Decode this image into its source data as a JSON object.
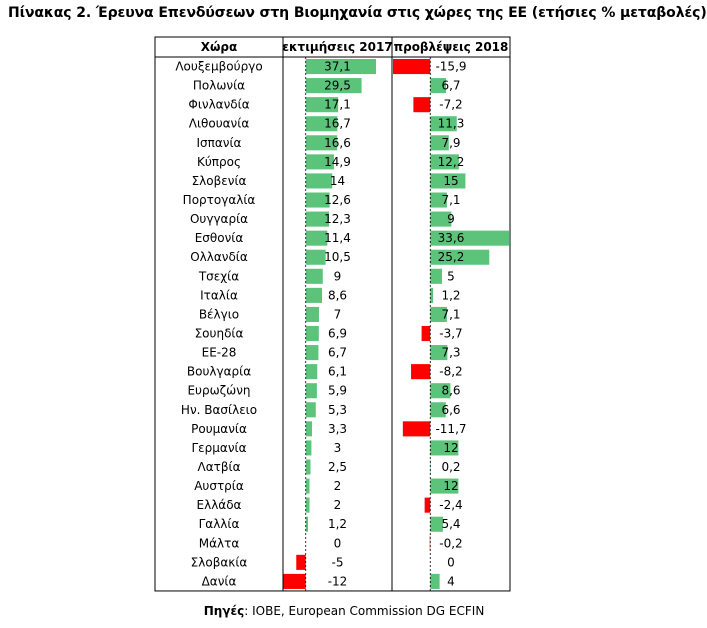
{
  "title": "Πίνακας 2. Έρευνα Επενδύσεων στη Βιομηχανία στις χώρες της ΕΕ (ετήσιες % μεταβολές)",
  "source_label": "Πηγές",
  "source_text": ": IOBE, European Commission DG ECFIN",
  "colors": {
    "positive": "#5cc47a",
    "negative": "#ff0000",
    "grid": "#000000"
  },
  "chart_data": {
    "type": "table",
    "columns": [
      "Χώρα",
      "εκτιμήσεις 2017",
      "προβλέψεις 2018"
    ],
    "rows": [
      {
        "country": "Λουξεμβούργο",
        "est2017": "37,1",
        "f2018": "-15,9"
      },
      {
        "country": "Πολωνία",
        "est2017": "29,5",
        "f2018": "6,7"
      },
      {
        "country": "Φινλανδία",
        "est2017": "17,1",
        "f2018": "-7,2"
      },
      {
        "country": "Λιθουανία",
        "est2017": "16,7",
        "f2018": "11,3"
      },
      {
        "country": "Ισπανία",
        "est2017": "16,6",
        "f2018": "7,9"
      },
      {
        "country": "Κύπρος",
        "est2017": "14,9",
        "f2018": "12,2"
      },
      {
        "country": "Σλοβενία",
        "est2017": "14",
        "f2018": "15"
      },
      {
        "country": "Πορτογαλία",
        "est2017": "12,6",
        "f2018": "7,1"
      },
      {
        "country": "Ουγγαρία",
        "est2017": "12,3",
        "f2018": "9"
      },
      {
        "country": "Εσθονία",
        "est2017": "11,4",
        "f2018": "33,6"
      },
      {
        "country": "Ολλανδία",
        "est2017": "10,5",
        "f2018": "25,2"
      },
      {
        "country": "Τσεχία",
        "est2017": "9",
        "f2018": "5"
      },
      {
        "country": "Ιταλία",
        "est2017": "8,6",
        "f2018": "1,2"
      },
      {
        "country": "Βέλγιο",
        "est2017": "7",
        "f2018": "7,1"
      },
      {
        "country": "Σουηδία",
        "est2017": "6,9",
        "f2018": "-3,7"
      },
      {
        "country": "ΕΕ-28",
        "est2017": "6,7",
        "f2018": "7,3"
      },
      {
        "country": "Βουλγαρία",
        "est2017": "6,1",
        "f2018": "-8,2"
      },
      {
        "country": "Ευρωζώνη",
        "est2017": "5,9",
        "f2018": "8,6"
      },
      {
        "country": "Ην. Βασίλειο",
        "est2017": "5,3",
        "f2018": "6,6"
      },
      {
        "country": "Ρουμανία",
        "est2017": "3,3",
        "f2018": "-11,7"
      },
      {
        "country": "Γερμανία",
        "est2017": "3",
        "f2018": "12"
      },
      {
        "country": "Λατβία",
        "est2017": "2,5",
        "f2018": "0,2"
      },
      {
        "country": "Αυστρία",
        "est2017": "2",
        "f2018": "12"
      },
      {
        "country": "Ελλάδα",
        "est2017": "2",
        "f2018": "-2,4"
      },
      {
        "country": "Γαλλία",
        "est2017": "1,2",
        "f2018": "5,4"
      },
      {
        "country": "Μάλτα",
        "est2017": "0",
        "f2018": "-0,2"
      },
      {
        "country": "Σλοβακία",
        "est2017": "-5",
        "f2018": "0"
      },
      {
        "country": "Δανία",
        "est2017": "-12",
        "f2018": "4"
      }
    ]
  }
}
